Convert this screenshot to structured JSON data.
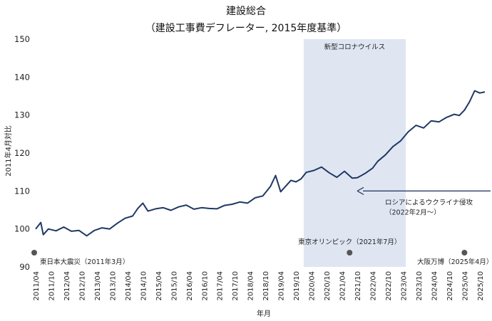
{
  "chart_data": {
    "type": "line",
    "title": "建設総合",
    "subtitle": "（建設工事費デフレーター, 2015年度基準）",
    "xlabel": "年月",
    "ylabel": "2011年4月対比",
    "ylim": [
      90,
      150
    ],
    "yticks": [
      90,
      100,
      110,
      120,
      130,
      140,
      150
    ],
    "grid": false,
    "x_start": "2011/04",
    "x_end": "2025/12",
    "xtick_labels": [
      "2011/04",
      "2011/10",
      "2012/04",
      "2012/10",
      "2013/04",
      "2013/10",
      "2014/04",
      "2014/10",
      "2015/04",
      "2015/10",
      "2016/04",
      "2016/10",
      "2017/04",
      "2017/10",
      "2018/04",
      "2018/10",
      "2019/04",
      "2019/10",
      "2020/04",
      "2020/10",
      "2021/04",
      "2021/10",
      "2022/04",
      "2022/10",
      "2023/04",
      "2023/10",
      "2024/04",
      "2024/10",
      "2025/04",
      "2025/10"
    ],
    "shaded_region": {
      "label": "新型コロナウイルス",
      "from": "2020/01",
      "to": "2023/05",
      "color": "#dfe6f2"
    },
    "markers": [
      {
        "x": "2011/03",
        "label": "東日本大震災（2011年3月）"
      },
      {
        "x": "2021/07",
        "label": "東京オリンピック（2021年7月）"
      },
      {
        "x": "2025/04",
        "label": "大阪万博（2025年4月）"
      }
    ],
    "arrow_annotation": {
      "x": "2021/10",
      "y": 110,
      "label_line1": "ロシアによるウクライナ侵攻",
      "label_line2": "（2022年2月～）"
    },
    "series": [
      {
        "color": "#1f3864",
        "points": [
          [
            "2011/04",
            100
          ],
          [
            "2011/06",
            101.7
          ],
          [
            "2011/07",
            98.5
          ],
          [
            "2011/09",
            100
          ],
          [
            "2011/12",
            99.5
          ],
          [
            "2012/03",
            100.5
          ],
          [
            "2012/06",
            99.4
          ],
          [
            "2012/09",
            99.6
          ],
          [
            "2012/12",
            98.2
          ],
          [
            "2013/03",
            99.6
          ],
          [
            "2013/06",
            100.3
          ],
          [
            "2013/09",
            100
          ],
          [
            "2013/12",
            101.5
          ],
          [
            "2014/03",
            102.8
          ],
          [
            "2014/06",
            103.4
          ],
          [
            "2014/08",
            105.4
          ],
          [
            "2014/10",
            106.8
          ],
          [
            "2014/12",
            104.7
          ],
          [
            "2015/03",
            105.3
          ],
          [
            "2015/06",
            105.6
          ],
          [
            "2015/09",
            104.9
          ],
          [
            "2015/12",
            105.8
          ],
          [
            "2016/03",
            106.3
          ],
          [
            "2016/06",
            105.2
          ],
          [
            "2016/09",
            105.6
          ],
          [
            "2016/12",
            105.4
          ],
          [
            "2017/03",
            105.3
          ],
          [
            "2017/06",
            106.2
          ],
          [
            "2017/09",
            106.5
          ],
          [
            "2017/12",
            107.1
          ],
          [
            "2018/03",
            106.8
          ],
          [
            "2018/06",
            108.2
          ],
          [
            "2018/09",
            108.7
          ],
          [
            "2018/12",
            111.2
          ],
          [
            "2019/02",
            114.1
          ],
          [
            "2019/04",
            109.8
          ],
          [
            "2019/06",
            111.3
          ],
          [
            "2019/08",
            112.8
          ],
          [
            "2019/10",
            112.4
          ],
          [
            "2019/12",
            113.2
          ],
          [
            "2020/02",
            114.9
          ],
          [
            "2020/05",
            115.4
          ],
          [
            "2020/08",
            116.3
          ],
          [
            "2020/11",
            114.8
          ],
          [
            "2021/02",
            113.6
          ],
          [
            "2021/05",
            115.2
          ],
          [
            "2021/08",
            113.4
          ],
          [
            "2021/10",
            113.5
          ],
          [
            "2022/01",
            114.6
          ],
          [
            "2022/04",
            116
          ],
          [
            "2022/06",
            117.8
          ],
          [
            "2022/09",
            119.5
          ],
          [
            "2022/12",
            121.7
          ],
          [
            "2023/03",
            123.2
          ],
          [
            "2023/06",
            125.6
          ],
          [
            "2023/09",
            127.3
          ],
          [
            "2023/12",
            126.6
          ],
          [
            "2024/03",
            128.5
          ],
          [
            "2024/06",
            128.2
          ],
          [
            "2024/09",
            129.4
          ],
          [
            "2024/12",
            130.2
          ],
          [
            "2025/02",
            129.9
          ],
          [
            "2025/04",
            131.3
          ],
          [
            "2025/06",
            133.5
          ],
          [
            "2025/08",
            136.4
          ],
          [
            "2025/10",
            135.8
          ],
          [
            "2025/12",
            136.1
          ]
        ]
      }
    ]
  }
}
